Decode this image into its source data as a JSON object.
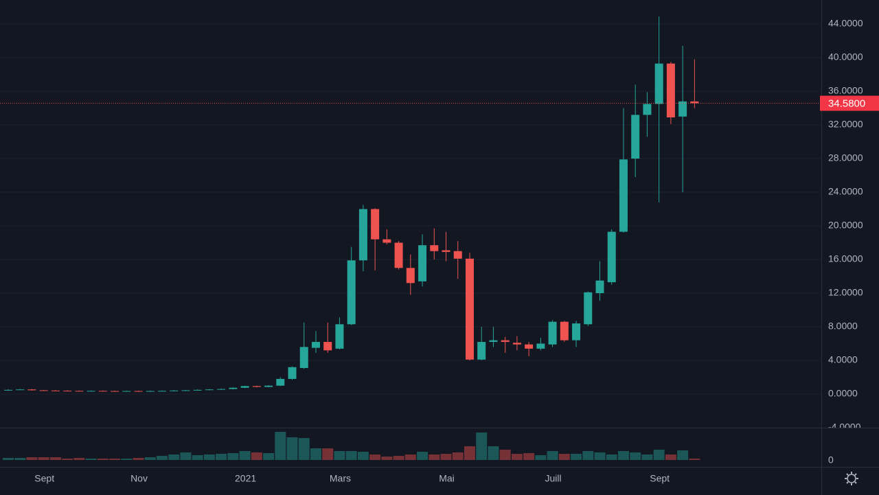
{
  "chart_data": {
    "type": "candlestick",
    "categories": [
      null,
      null,
      null,
      "Sept",
      null,
      null,
      null,
      null,
      null,
      null,
      null,
      "Nov",
      null,
      null,
      null,
      null,
      null,
      null,
      null,
      null,
      "2021",
      null,
      null,
      null,
      null,
      null,
      null,
      null,
      "Mars",
      null,
      null,
      null,
      null,
      null,
      null,
      null,
      null,
      "Mai",
      null,
      null,
      null,
      null,
      null,
      null,
      null,
      null,
      "Juill",
      null,
      null,
      null,
      null,
      null,
      null,
      null,
      null,
      "Sept",
      null,
      null,
      null
    ],
    "open": [
      0.45,
      0.5,
      0.55,
      0.45,
      0.42,
      0.4,
      0.38,
      0.36,
      0.38,
      0.36,
      0.35,
      0.36,
      0.35,
      0.36,
      0.38,
      0.42,
      0.45,
      0.5,
      0.55,
      0.6,
      0.75,
      0.95,
      0.85,
      1.0,
      1.8,
      3.1,
      5.5,
      6.2,
      5.4,
      8.3,
      15.9,
      22.0,
      18.4,
      18.0,
      15.0,
      13.4,
      17.7,
      17.1,
      17.0,
      16.1,
      4.1,
      6.2,
      6.4,
      6.1,
      5.9,
      5.4,
      5.9,
      8.6,
      6.4,
      8.3,
      12.0,
      13.3,
      19.3,
      28.0,
      33.2,
      34.5,
      39.3,
      33.0,
      34.8
    ],
    "high": [
      0.56,
      0.6,
      0.6,
      0.5,
      0.47,
      0.45,
      0.43,
      0.43,
      0.43,
      0.41,
      0.41,
      0.41,
      0.41,
      0.43,
      0.47,
      0.5,
      0.55,
      0.6,
      0.65,
      0.8,
      1.0,
      1.0,
      1.05,
      2.0,
      3.3,
      8.5,
      7.5,
      8.5,
      9.1,
      17.5,
      22.5,
      22.1,
      19.6,
      18.2,
      16.6,
      19.0,
      19.7,
      19.3,
      18.2,
      16.8,
      8.0,
      8.0,
      6.8,
      6.9,
      6.2,
      6.7,
      8.8,
      8.7,
      8.7,
      12.2,
      15.8,
      19.6,
      34.0,
      36.8,
      35.9,
      44.9,
      39.5,
      41.4,
      39.8
    ],
    "low": [
      0.4,
      0.45,
      0.42,
      0.4,
      0.37,
      0.35,
      0.33,
      0.32,
      0.33,
      0.31,
      0.3,
      0.31,
      0.3,
      0.32,
      0.34,
      0.38,
      0.41,
      0.45,
      0.5,
      0.55,
      0.7,
      0.8,
      0.8,
      0.95,
      1.7,
      3.0,
      4.9,
      4.9,
      5.3,
      8.2,
      14.6,
      14.7,
      17.8,
      14.8,
      11.8,
      12.8,
      16.0,
      15.8,
      13.7,
      4.0,
      4.0,
      5.6,
      4.9,
      5.2,
      4.5,
      5.2,
      5.6,
      6.2,
      5.6,
      8.1,
      11.1,
      13.0,
      19.2,
      25.8,
      30.6,
      22.8,
      32.1,
      24.0,
      34.0
    ],
    "close": [
      0.5,
      0.55,
      0.45,
      0.42,
      0.4,
      0.38,
      0.36,
      0.38,
      0.36,
      0.35,
      0.36,
      0.35,
      0.36,
      0.38,
      0.42,
      0.45,
      0.5,
      0.55,
      0.6,
      0.75,
      0.95,
      0.85,
      1.0,
      1.8,
      3.2,
      5.6,
      6.2,
      5.2,
      8.3,
      15.9,
      22.0,
      18.4,
      18.0,
      15.0,
      13.2,
      17.7,
      17.0,
      16.9,
      16.1,
      4.1,
      6.2,
      6.4,
      6.2,
      5.9,
      5.4,
      6.0,
      8.6,
      6.4,
      8.4,
      12.1,
      13.5,
      19.3,
      27.9,
      33.2,
      34.5,
      39.3,
      32.9,
      34.8,
      34.58
    ],
    "volume": [
      3,
      3,
      4,
      4,
      4,
      2,
      3,
      2,
      2,
      2,
      2,
      3,
      4,
      6,
      8,
      11,
      7,
      8,
      9,
      10,
      13,
      11,
      10,
      41,
      33,
      32,
      17,
      17,
      13,
      13,
      12,
      8,
      5,
      6,
      8,
      12,
      8,
      9,
      11,
      20,
      40,
      20,
      15,
      9,
      10,
      7,
      13,
      9,
      9,
      13,
      11,
      8,
      13,
      11,
      8,
      15,
      8,
      14,
      2
    ],
    "up_color": "#26a69a",
    "down_color": "#ef5350",
    "ylim": [
      -3.92,
      46.86
    ],
    "yticks": [
      {
        "value": -4,
        "label": "-4.0000"
      },
      {
        "value": 0,
        "label": "0.0000"
      },
      {
        "value": 4,
        "label": "4.0000"
      },
      {
        "value": 8,
        "label": "8.0000"
      },
      {
        "value": 12,
        "label": "12.0000"
      },
      {
        "value": 16,
        "label": "16.0000"
      },
      {
        "value": 20,
        "label": "20.0000"
      },
      {
        "value": 24,
        "label": "24.0000"
      },
      {
        "value": 28,
        "label": "28.0000"
      },
      {
        "value": 32,
        "label": "32.0000"
      },
      {
        "value": 36,
        "label": "36.0000"
      },
      {
        "value": 40,
        "label": "40.0000"
      },
      {
        "value": 44,
        "label": "44.0000"
      }
    ],
    "volume_ylim": [
      0,
      45
    ],
    "volume_yticks": [
      0
    ],
    "last_price": {
      "value": 34.58,
      "label": "34.5800"
    },
    "grid": true
  }
}
